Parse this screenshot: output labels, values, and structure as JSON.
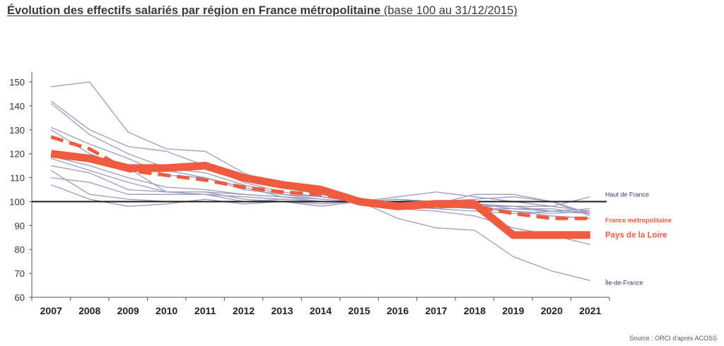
{
  "title": {
    "bold": "Évolution des effectifs salariés par région en France métropolitaine",
    "normal": "(base 100 au 31/12/2015)"
  },
  "source": "Source : ORCI d'après ACOSS",
  "colors": {
    "regions": "#9a9cbd",
    "highlight": "#ee5b3f",
    "reference": "#1a1a1a",
    "axis": "#555555"
  },
  "chart_data": {
    "type": "line",
    "x": [
      "2007",
      "2008",
      "2009",
      "2010",
      "2011",
      "2012",
      "2013",
      "2014",
      "2015",
      "2016",
      "2017",
      "2018",
      "2019",
      "2020",
      "2021"
    ],
    "ylim": [
      60,
      150
    ],
    "yticks": [
      60,
      70,
      80,
      90,
      100,
      110,
      120,
      130,
      140,
      150
    ],
    "xlabel": "",
    "ylabel": "",
    "grid": false,
    "reference_line": 100,
    "series": [
      {
        "name": "Île-de-France",
        "style": "region",
        "label": "Île-de-France",
        "values": [
          113,
          103,
          101,
          100,
          100,
          100,
          100,
          100,
          100,
          93,
          89,
          88,
          77,
          71,
          67
        ]
      },
      {
        "name": "Haut de France",
        "style": "region",
        "label": "Haut de France",
        "values": [
          119,
          115,
          110,
          106,
          105,
          103,
          102,
          101,
          100,
          100,
          99,
          98,
          98,
          98,
          102
        ]
      },
      {
        "style": "region",
        "values": [
          148,
          150,
          129,
          122,
          121,
          112,
          106,
          103,
          100,
          97,
          96,
          94,
          89,
          86,
          82
        ]
      },
      {
        "style": "region",
        "values": [
          142,
          130,
          123,
          121,
          115,
          108,
          104,
          102,
          100,
          101,
          100,
          98,
          96,
          94,
          93
        ]
      },
      {
        "style": "region",
        "values": [
          141,
          128,
          120,
          114,
          112,
          107,
          103,
          102,
          100,
          102,
          104,
          102,
          100,
          98,
          96
        ]
      },
      {
        "style": "region",
        "values": [
          131,
          124,
          118,
          111,
          110,
          106,
          102,
          100,
          100,
          101,
          99,
          103,
          103,
          100,
          94
        ]
      },
      {
        "style": "region",
        "values": [
          130,
          120,
          114,
          104,
          104,
          103,
          102,
          100,
          100,
          99,
          100,
          101,
          102,
          100,
          95
        ]
      },
      {
        "style": "region",
        "values": [
          120,
          118,
          115,
          113,
          110,
          105,
          103,
          101,
          100,
          99,
          98,
          97,
          96,
          95,
          96
        ]
      },
      {
        "style": "region",
        "values": [
          118,
          113,
          108,
          104,
          103,
          102,
          101,
          100,
          100,
          100,
          98,
          99,
          97,
          96,
          97
        ]
      },
      {
        "style": "region",
        "values": [
          115,
          112,
          105,
          104,
          104,
          101,
          100,
          99,
          100,
          100,
          98,
          97,
          97,
          97,
          95
        ]
      },
      {
        "style": "region",
        "values": [
          110,
          108,
          103,
          103,
          103,
          100,
          101,
          100,
          100,
          98,
          97,
          99,
          98,
          96,
          95
        ]
      },
      {
        "style": "region",
        "values": [
          107,
          101,
          98,
          99,
          101,
          99,
          100,
          98,
          100,
          99,
          97,
          96,
          95,
          96,
          95
        ]
      },
      {
        "name": "France métropolitaine",
        "style": "dashed",
        "label": "France métropolitaine",
        "values": [
          127,
          122,
          113,
          111,
          109,
          106,
          104,
          103,
          100,
          98,
          98,
          98,
          95,
          93,
          93
        ]
      },
      {
        "name": "Pays de la Loire",
        "style": "thick",
        "label": "Pays de la Loire",
        "values": [
          120,
          118,
          114,
          114,
          115,
          110,
          107,
          105,
          100,
          98,
          99,
          99,
          86,
          86,
          86
        ]
      }
    ]
  }
}
